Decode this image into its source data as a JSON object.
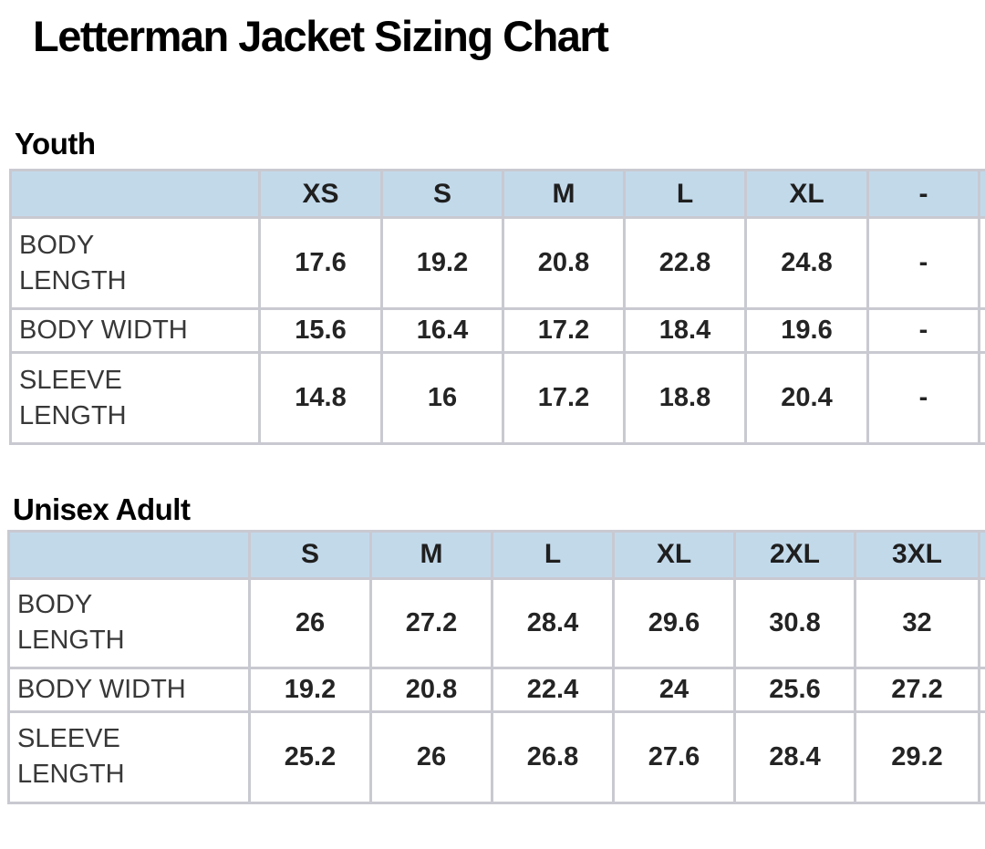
{
  "page": {
    "title": "Letterman Jacket Sizing Chart"
  },
  "colors": {
    "header_bg": "#c2d9ea",
    "table_border": "#c9c9d1",
    "value_text": "#242424",
    "label_text": "#383838",
    "heading_text": "#000000",
    "background": "#ffffff"
  },
  "chart_data": [
    {
      "type": "table",
      "title": "Youth",
      "columns": [
        "XS",
        "S",
        "M",
        "L",
        "XL",
        "-"
      ],
      "rows": [
        {
          "label": "BODY\nLENGTH",
          "values": [
            "17.6",
            "19.2",
            "20.8",
            "22.8",
            "24.8",
            "-"
          ]
        },
        {
          "label": "BODY WIDTH",
          "values": [
            "15.6",
            "16.4",
            "17.2",
            "18.4",
            "19.6",
            "-"
          ]
        },
        {
          "label": "SLEEVE\nLENGTH",
          "values": [
            "14.8",
            "16",
            "17.2",
            "18.8",
            "20.4",
            "-"
          ]
        }
      ]
    },
    {
      "type": "table",
      "title": "Unisex Adult",
      "columns": [
        "S",
        "M",
        "L",
        "XL",
        "2XL",
        "3XL"
      ],
      "rows": [
        {
          "label": "BODY\nLENGTH",
          "values": [
            "26",
            "27.2",
            "28.4",
            "29.6",
            "30.8",
            "32"
          ]
        },
        {
          "label": "BODY WIDTH",
          "values": [
            "19.2",
            "20.8",
            "22.4",
            "24",
            "25.6",
            "27.2"
          ]
        },
        {
          "label": "SLEEVE\nLENGTH",
          "values": [
            "25.2",
            "26",
            "26.8",
            "27.6",
            "28.4",
            "29.2"
          ]
        }
      ]
    }
  ]
}
